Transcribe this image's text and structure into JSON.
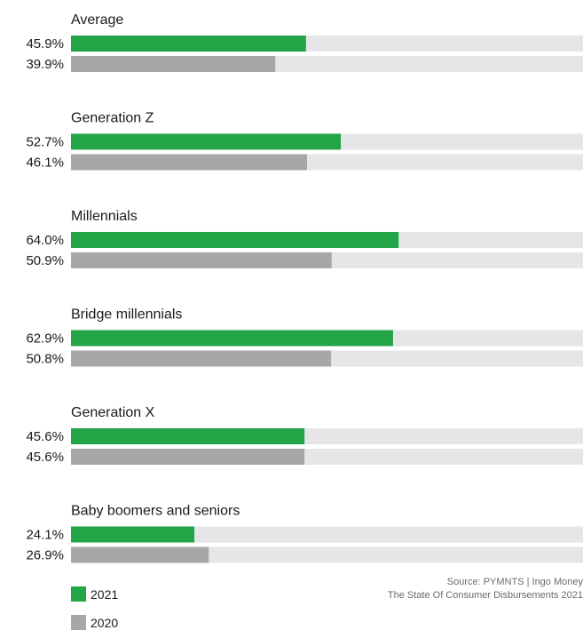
{
  "chart_data": {
    "type": "bar",
    "orientation": "horizontal",
    "categories": [
      "Average",
      "Generation Z",
      "Millennials",
      "Bridge millennials",
      "Generation X",
      "Baby boomers and seniors"
    ],
    "series": [
      {
        "name": "2021",
        "values": [
          45.9,
          52.7,
          64.0,
          62.9,
          45.6,
          24.1
        ],
        "color": "#22a447"
      },
      {
        "name": "2020",
        "values": [
          39.9,
          46.1,
          50.9,
          50.8,
          45.6,
          26.9
        ],
        "color": "#a7a7a9"
      }
    ],
    "value_labels": [
      [
        "45.9%",
        "39.9%"
      ],
      [
        "52.7%",
        "46.1%"
      ],
      [
        "64.0%",
        "50.9%"
      ],
      [
        "62.9%",
        "50.8%"
      ],
      [
        "45.6%",
        "45.6%"
      ],
      [
        "24.1%",
        "26.9%"
      ]
    ],
    "xlim": [
      0,
      100
    ],
    "track_color": "#e6e6e8",
    "legend_position": "bottom-left",
    "grid": false
  },
  "source": {
    "line1": "Source: PYMNTS  |  Ingo Money",
    "line2": "The State Of Consumer Disbursements 2021"
  },
  "legend": {
    "item_2021": "2021",
    "item_2020": "2020",
    "color_2021": "#22a447",
    "color_2020": "#a7a7a9"
  }
}
